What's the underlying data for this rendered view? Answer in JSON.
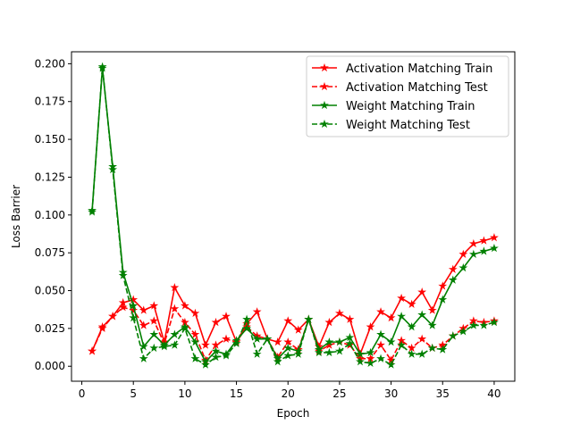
{
  "chart_data": {
    "type": "line",
    "xlabel": "Epoch",
    "ylabel": "Loss Barrier",
    "xlim": [
      -1,
      42
    ],
    "ylim": [
      -0.0099,
      0.2079
    ],
    "xticks": [
      0,
      5,
      10,
      15,
      20,
      25,
      30,
      35,
      40
    ],
    "yticks": [
      0.0,
      0.025,
      0.05,
      0.075,
      0.1,
      0.125,
      0.15,
      0.175,
      0.2
    ],
    "ytick_labels": [
      "0.000",
      "0.025",
      "0.050",
      "0.075",
      "0.100",
      "0.125",
      "0.150",
      "0.175",
      "0.200"
    ],
    "legend_position": "top-right",
    "grid": false,
    "x": [
      1,
      2,
      3,
      4,
      5,
      6,
      7,
      8,
      9,
      10,
      11,
      12,
      13,
      14,
      15,
      16,
      17,
      18,
      19,
      20,
      21,
      22,
      23,
      24,
      25,
      26,
      27,
      28,
      29,
      30,
      31,
      32,
      33,
      34,
      35,
      36,
      37,
      38,
      39,
      40
    ],
    "series": [
      {
        "name": "Activation Matching Train",
        "color": "#ff0000",
        "linestyle": "solid",
        "values": [
          0.01,
          0.026,
          0.033,
          0.042,
          0.044,
          0.037,
          0.04,
          0.016,
          0.052,
          0.04,
          0.035,
          0.014,
          0.029,
          0.033,
          0.016,
          0.028,
          0.036,
          0.018,
          0.016,
          0.03,
          0.024,
          0.031,
          0.013,
          0.029,
          0.035,
          0.031,
          0.008,
          0.026,
          0.036,
          0.032,
          0.045,
          0.041,
          0.049,
          0.037,
          0.053,
          0.064,
          0.074,
          0.081,
          0.083,
          0.085
        ]
      },
      {
        "name": "Activation Matching Test",
        "color": "#ff0000",
        "linestyle": "dashed",
        "values": [
          0.01,
          0.025,
          0.033,
          0.039,
          0.037,
          0.027,
          0.03,
          0.015,
          0.038,
          0.029,
          0.021,
          0.004,
          0.014,
          0.018,
          0.016,
          0.026,
          0.02,
          0.018,
          0.006,
          0.016,
          0.011,
          0.031,
          0.01,
          0.014,
          0.016,
          0.014,
          0.005,
          0.005,
          0.014,
          0.004,
          0.017,
          0.012,
          0.018,
          0.012,
          0.014,
          0.02,
          0.025,
          0.03,
          0.029,
          0.03
        ]
      },
      {
        "name": "Weight Matching Train",
        "color": "#008000",
        "linestyle": "solid",
        "values": [
          0.103,
          0.197,
          0.132,
          0.062,
          0.04,
          0.013,
          0.021,
          0.014,
          0.021,
          0.026,
          0.016,
          0.003,
          0.01,
          0.008,
          0.017,
          0.025,
          0.018,
          0.018,
          0.005,
          0.012,
          0.01,
          0.031,
          0.011,
          0.016,
          0.016,
          0.019,
          0.008,
          0.009,
          0.021,
          0.016,
          0.033,
          0.026,
          0.034,
          0.027,
          0.044,
          0.057,
          0.065,
          0.074,
          0.076,
          0.078
        ]
      },
      {
        "name": "Weight Matching Test",
        "color": "#008000",
        "linestyle": "dashed",
        "values": [
          0.102,
          0.198,
          0.13,
          0.06,
          0.032,
          0.005,
          0.012,
          0.013,
          0.014,
          0.025,
          0.005,
          0.001,
          0.006,
          0.007,
          0.015,
          0.031,
          0.008,
          0.018,
          0.003,
          0.007,
          0.008,
          0.031,
          0.009,
          0.009,
          0.01,
          0.015,
          0.003,
          0.002,
          0.005,
          0.001,
          0.014,
          0.008,
          0.008,
          0.012,
          0.011,
          0.02,
          0.023,
          0.027,
          0.027,
          0.029
        ]
      }
    ]
  }
}
